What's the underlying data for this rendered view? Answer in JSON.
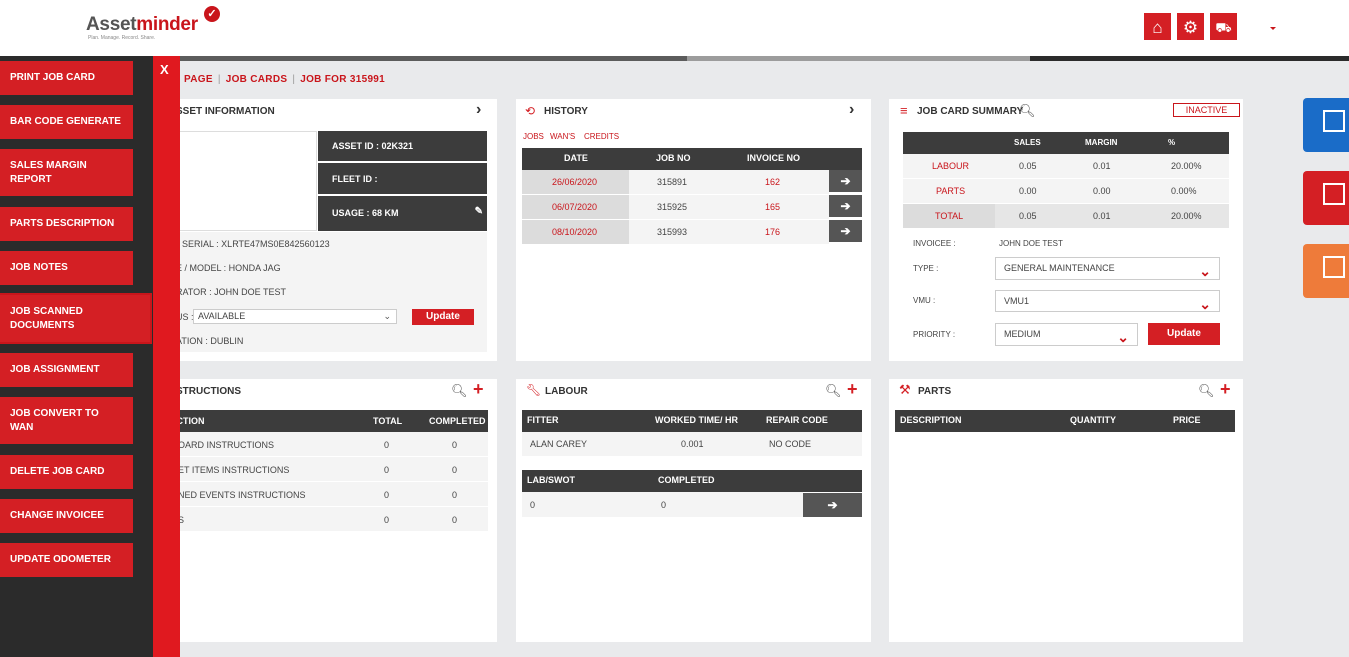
{
  "brand": {
    "name_part1": "Asset",
    "name_part2": "minder",
    "tagline": "Plan. Manage. Record. Share."
  },
  "colors": {
    "accent": "#d41f24",
    "dark": "#2b2b2b",
    "blue": "#1a6cc8",
    "orange": "#ee7b3a"
  },
  "top_icons": [
    "home-icon",
    "gear-icon",
    "truck-icon"
  ],
  "sidebar": {
    "close_label": "X",
    "items": [
      {
        "label": "PRINT JOB CARD"
      },
      {
        "label": "BAR CODE GENERATE"
      },
      {
        "label": "SALES MARGIN REPORT"
      },
      {
        "label": "PARTS DESCRIPTION"
      },
      {
        "label": "JOB NOTES"
      },
      {
        "label": "JOB SCANNED DOCUMENTS"
      },
      {
        "label": "JOB ASSIGNMENT"
      },
      {
        "label": "JOB CONVERT TO WAN"
      },
      {
        "label": "DELETE JOB CARD"
      },
      {
        "label": "CHANGE INVOICEE"
      },
      {
        "label": "UPDATE ODOMETER"
      }
    ]
  },
  "breadcrumb": {
    "items": [
      "PAGE",
      "JOB CARDS",
      "JOB FOR 315991"
    ],
    "sep": "|"
  },
  "asset_info": {
    "title": "SSET INFORMATION",
    "asset_id": "ASSET ID : 02K321",
    "fleet_id": "FLEET ID :",
    "usage": "USAGE : 68 KM",
    "serial": "SERIAL : XLRTE47MS0E842560123",
    "make_model": "E / MODEL : HONDA JAG",
    "operator": "RATOR : JOHN DOE TEST",
    "status_label": "US :",
    "status_value": "AVAILABLE",
    "update_label": "Update",
    "location": "ATION : DUBLIN"
  },
  "history": {
    "title": "HISTORY",
    "tabs": [
      "JOBS",
      "WAN'S",
      "CREDITS"
    ],
    "columns": [
      "DATE",
      "JOB NO",
      "INVOICE NO"
    ],
    "rows": [
      {
        "date": "26/06/2020",
        "job": "315891",
        "invoice": "162"
      },
      {
        "date": "06/07/2020",
        "job": "315925",
        "invoice": "165"
      },
      {
        "date": "08/10/2020",
        "job": "315993",
        "invoice": "176"
      }
    ]
  },
  "summary": {
    "title": "JOB CARD SUMMARY",
    "status": "INACTIVE",
    "columns": [
      "SALES",
      "MARGIN",
      "%"
    ],
    "rows": [
      {
        "label": "LABOUR",
        "sales": "0.05",
        "margin": "0.01",
        "pct": "20.00%"
      },
      {
        "label": "PARTS",
        "sales": "0.00",
        "margin": "0.00",
        "pct": "0.00%"
      },
      {
        "label": "TOTAL",
        "sales": "0.05",
        "margin": "0.01",
        "pct": "20.00%"
      }
    ],
    "invoicee_label": "INVOICEE :",
    "invoicee_value": "JOHN DOE TEST",
    "type_label": "TYPE :",
    "type_value": "GENERAL MAINTENANCE",
    "vmu_label": "VMU :",
    "vmu_value": "VMU1",
    "priority_label": "PRIORITY :",
    "priority_value": "MEDIUM",
    "update_label": "Update"
  },
  "instructions": {
    "title": "STRUCTIONS",
    "columns": [
      "UCTION",
      "TOTAL",
      "COMPLETED"
    ],
    "rows": [
      {
        "name": "OARD INSTRUCTIONS",
        "total": "0",
        "completed": "0"
      },
      {
        "name": "ET ITEMS INSTRUCTIONS",
        "total": "0",
        "completed": "0"
      },
      {
        "name": "NED EVENTS INSTRUCTIONS",
        "total": "0",
        "completed": "0"
      },
      {
        "name": "S",
        "total": "0",
        "completed": "0"
      }
    ]
  },
  "labour": {
    "title": "LABOUR",
    "columns": [
      "FITTER",
      "WORKED TIME/ HR",
      "REPAIR CODE"
    ],
    "rows": [
      {
        "fitter": "ALAN CAREY",
        "time": "0.001",
        "code": "NO CODE"
      }
    ],
    "swot_columns": [
      "LAB/SWOT",
      "COMPLETED"
    ],
    "swot_rows": [
      {
        "lab": "0",
        "completed": "0"
      }
    ]
  },
  "parts": {
    "title": "PARTS",
    "columns": [
      "DESCRIPTION",
      "QUANTITY",
      "PRICE"
    ]
  }
}
